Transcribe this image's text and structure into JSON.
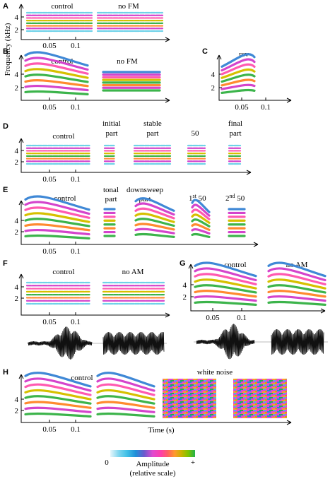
{
  "figure": {
    "ylabel": "Frequency (kHz)",
    "xlabel": "Time (s)",
    "colorbar": {
      "title_line1": "Amplitude",
      "title_line2": "(relative scale)",
      "min_label": "0",
      "max_label": "+",
      "colors": [
        "#e6f6fb",
        "#bfeaf6",
        "#7fd6ef",
        "#3fbfe6",
        "#1f8fd8",
        "#6a5acd",
        "#b060d0",
        "#e04ad0",
        "#ff3fa8",
        "#ff6060",
        "#ff9a2e",
        "#c8b400",
        "#7cc400",
        "#22b24c",
        "#0f9a7a"
      ]
    },
    "colors": {
      "blue": "#3f88d6",
      "cyan": "#6fd2e8",
      "magenta": "#d444cc",
      "pink": "#ff5ab0",
      "green": "#3cb44b",
      "yellow": "#d6c000",
      "orange": "#ff8a30",
      "noise_a": "#e04ad0",
      "noise_b": "#1f8fd8"
    }
  },
  "panels": {
    "A": {
      "label": "A",
      "cap1": "control",
      "cap2": "no FM",
      "yticks": [
        "4",
        "2"
      ],
      "xticks": [
        "0.05",
        "0.1"
      ]
    },
    "B": {
      "label": "B",
      "cap1": "control",
      "cap2": "no FM",
      "yticks": [
        "4",
        "2"
      ],
      "xticks": [
        "0.05",
        "0.1"
      ]
    },
    "C": {
      "label": "C",
      "cap1": "rev",
      "yticks": [
        "4",
        "2"
      ],
      "xticks": [
        "0.05",
        "0.1"
      ]
    },
    "D": {
      "label": "D",
      "cap1": "control",
      "cap2a": "initial",
      "cap2b": "part",
      "cap3a": "stable",
      "cap3b": "part",
      "cap4": "50",
      "cap5a": "final",
      "cap5b": "part",
      "yticks": [
        "4",
        "2"
      ],
      "xticks": [
        "0.05",
        "0.1"
      ]
    },
    "E": {
      "label": "E",
      "cap1": "control",
      "cap2a": "tonal",
      "cap2b": "part",
      "cap3a": "downsweep",
      "cap3b": "part",
      "cap4_num": "1",
      "cap4_sup": "st",
      "cap4_rest": " 50",
      "cap5_num": "2",
      "cap5_sup": "nd",
      "cap5_rest": " 50",
      "yticks": [
        "4",
        "2"
      ],
      "xticks": [
        "0.05",
        "0.1"
      ]
    },
    "F": {
      "label": "F",
      "cap1": "control",
      "cap2": "no AM",
      "yticks": [
        "4",
        "2"
      ],
      "xticks": [
        "0.05",
        "0.1"
      ]
    },
    "G": {
      "label": "G",
      "cap1": "control",
      "cap2": "no AM",
      "yticks": [
        "4",
        "2"
      ],
      "xticks": [
        "0.05",
        "0.1"
      ]
    },
    "H": {
      "label": "H",
      "cap1": "control",
      "cap2": "white noise",
      "yticks": [
        "4",
        "2"
      ],
      "xticks": [
        "0.05",
        "0.1"
      ]
    }
  }
}
